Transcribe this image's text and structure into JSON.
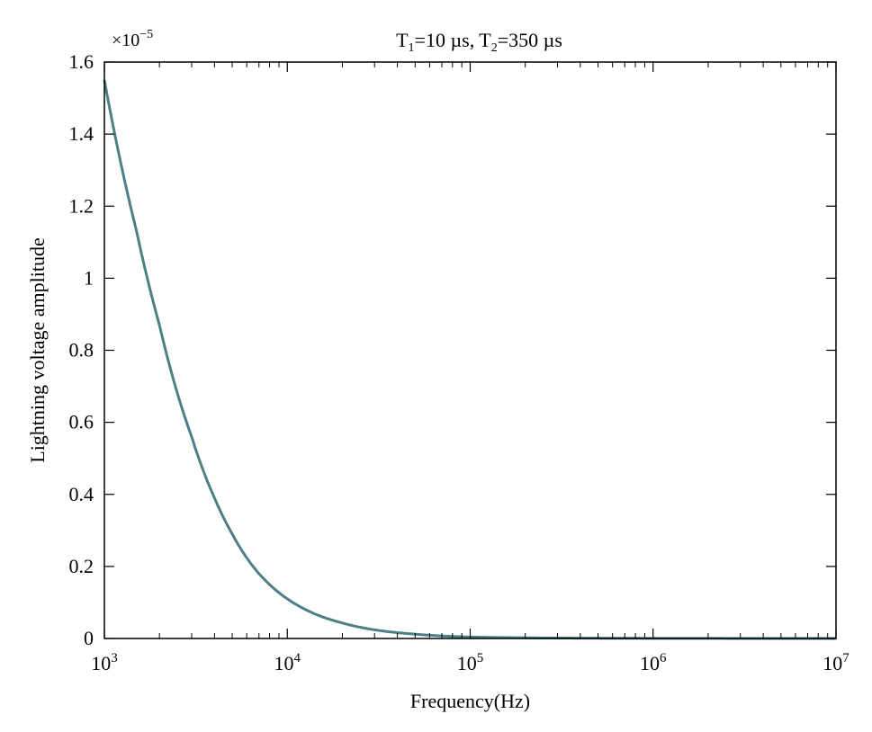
{
  "chart_data": {
    "type": "line",
    "title_parts": {
      "t1_symbol": "T",
      "t1_sub": "1",
      "t1_value": "=10 µs, ",
      "t2_symbol": "T",
      "t2_sub": "2",
      "t2_value": "=350 µs"
    },
    "multiplier": {
      "base": "×10",
      "exponent": "−5"
    },
    "xlabel": "Frequency(Hz)",
    "ylabel": "Lightning voltage amplitude",
    "x_scale": "log",
    "xlim": [
      1000,
      10000000
    ],
    "ylim": [
      0,
      1.6
    ],
    "y_ticks": [
      "0",
      "0.2",
      "0.4",
      "0.6",
      "0.8",
      "1",
      "1.2",
      "1.4",
      "1.6"
    ],
    "x_ticks": [
      {
        "base": "10",
        "exp": "3"
      },
      {
        "base": "10",
        "exp": "4"
      },
      {
        "base": "10",
        "exp": "5"
      },
      {
        "base": "10",
        "exp": "6"
      },
      {
        "base": "10",
        "exp": "7"
      }
    ],
    "grid": false,
    "series": [
      {
        "color": "#4d7f86",
        "x": [
          1000,
          1500,
          2000,
          3000,
          4000,
          5000,
          7000,
          10000,
          15000,
          20000,
          30000,
          50000,
          100000,
          1000000,
          10000000
        ],
        "y": [
          1.55,
          1.13,
          0.87,
          0.56,
          0.39,
          0.29,
          0.18,
          0.11,
          0.063,
          0.043,
          0.024,
          0.012,
          0.004,
          0.0004,
          4e-05
        ]
      }
    ]
  }
}
